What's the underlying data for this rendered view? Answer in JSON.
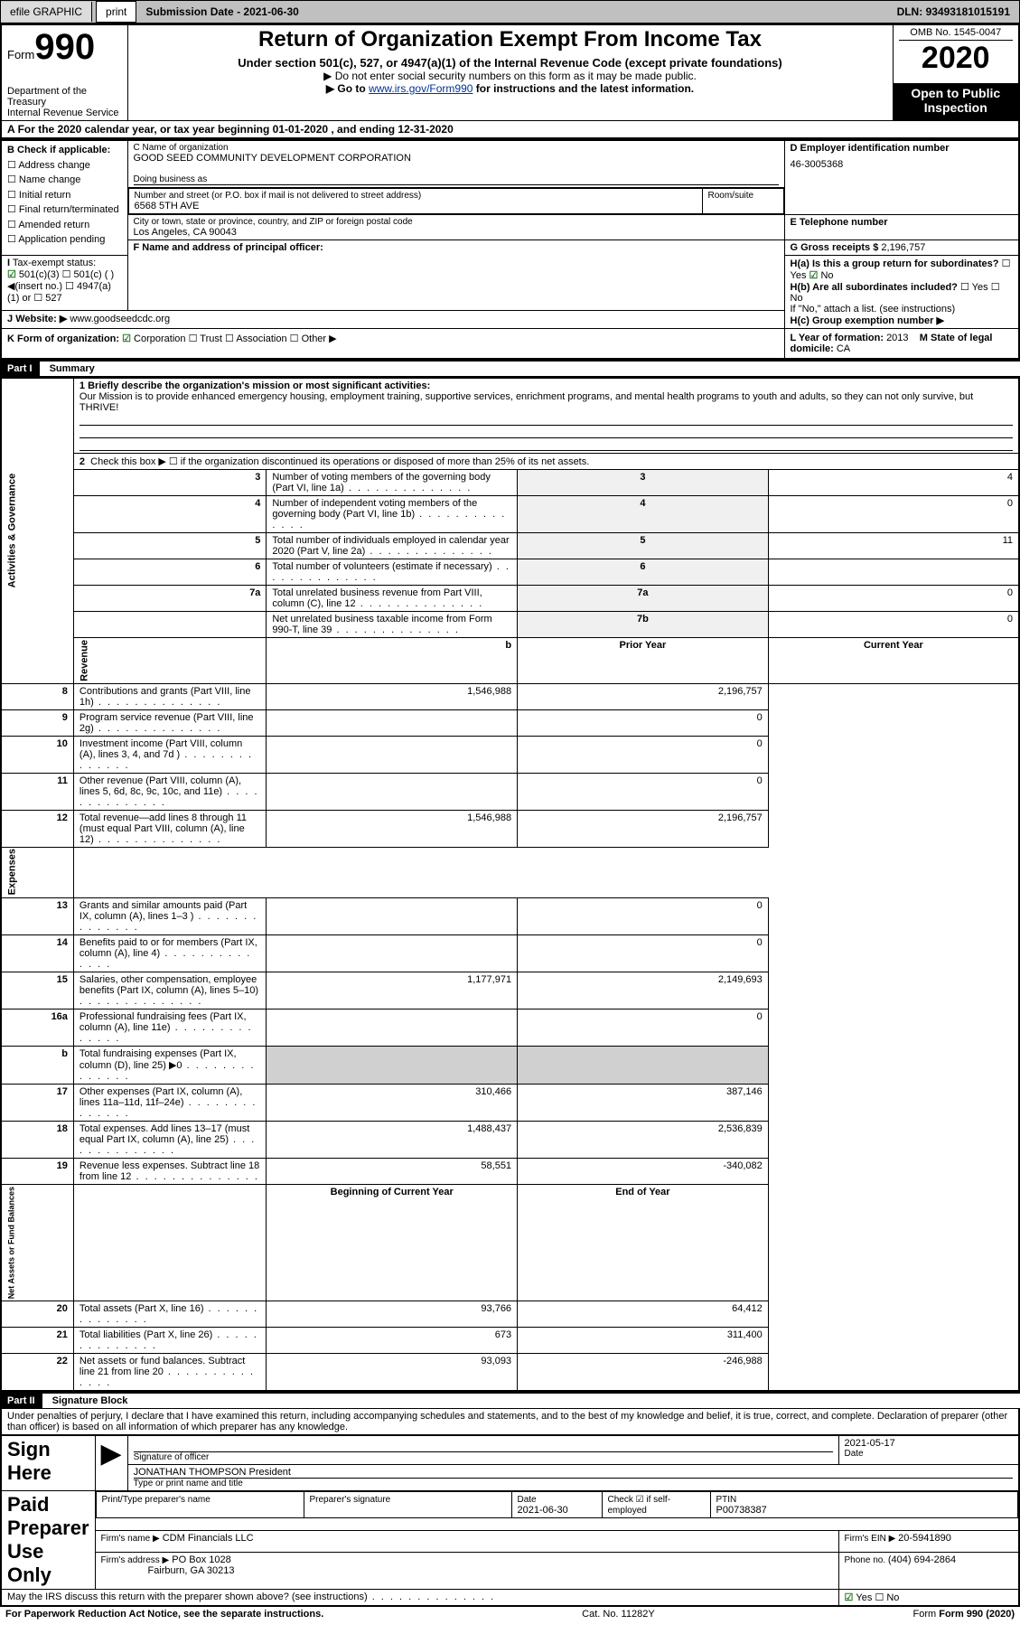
{
  "top_bar": {
    "efile": "efile GRAPHIC",
    "print": "print",
    "submission_label": "Submission Date - ",
    "submission_date": "2021-06-30",
    "dln_label": "DLN: ",
    "dln": "93493181015191"
  },
  "header": {
    "form_word": "Form",
    "form_no": "990",
    "dept": "Department of the Treasury",
    "irs": "Internal Revenue Service",
    "main_title": "Return of Organization Exempt From Income Tax",
    "sub_title": "Under section 501(c), 527, or 4947(a)(1) of the Internal Revenue Code (except private foundations)",
    "instr1": "▶ Do not enter social security numbers on this form as it may be made public.",
    "instr2_pre": "▶ Go to ",
    "instr2_link": "www.irs.gov/Form990",
    "instr2_post": " for instructions and the latest information.",
    "omb": "OMB No. 1545-0047",
    "year": "2020",
    "open": "Open to Public Inspection"
  },
  "period": {
    "line_a": "For the 2020 calendar year, or tax year beginning 01-01-2020    , and ending 12-31-2020"
  },
  "section_b": {
    "label": "B Check if applicable:",
    "items": [
      "Address change",
      "Name change",
      "Initial return",
      "Final return/terminated",
      "Amended return",
      "Application pending"
    ]
  },
  "section_c": {
    "name_lbl": "C Name of organization",
    "name": "GOOD SEED COMMUNITY DEVELOPMENT CORPORATION",
    "dba_lbl": "Doing business as",
    "addr_lbl": "Number and street (or P.O. box if mail is not delivered to street address)",
    "room_lbl": "Room/suite",
    "addr": "6568 5TH AVE",
    "city_lbl": "City or town, state or province, country, and ZIP or foreign postal code",
    "city": "Los Angeles, CA  90043"
  },
  "section_d": {
    "lbl": "D Employer identification number",
    "val": "46-3005368"
  },
  "section_e": {
    "lbl": "E Telephone number"
  },
  "section_f": {
    "lbl": "F  Name and address of principal officer:"
  },
  "section_g": {
    "lbl": "G Gross receipts $ ",
    "val": "2,196,757"
  },
  "section_h": {
    "ha": "H(a)  Is this a group return for subordinates?",
    "hb": "H(b)  Are all subordinates included?",
    "hb_note": "If \"No,\" attach a list. (see instructions)",
    "hc": "H(c)  Group exemption number ▶",
    "yes": "Yes",
    "no": "No"
  },
  "tax_status": {
    "lbl": "Tax-exempt status:",
    "c3": "501(c)(3)",
    "c": "501(c) (  ) ◀(insert no.)",
    "a1": "4947(a)(1) or",
    "s527": "527"
  },
  "section_i": {
    "lbl": "I",
    "tax_label": "Tax-exempt status:"
  },
  "section_j": {
    "lbl": "J",
    "site_lbl": "Website: ▶",
    "site": "www.goodseedcdc.org"
  },
  "section_k": {
    "lbl": "K Form of organization:",
    "corp": "Corporation",
    "trust": "Trust",
    "assoc": "Association",
    "other": "Other ▶"
  },
  "section_l": {
    "lbl": "L Year of formation: ",
    "val": "2013"
  },
  "section_m": {
    "lbl": "M State of legal domicile: ",
    "val": "CA"
  },
  "parts": {
    "p1_hdr": "Part I",
    "p1_title": "Summary",
    "p2_hdr": "Part II",
    "p2_title": "Signature Block"
  },
  "vert_labels": {
    "ag": "Activities & Governance",
    "rev": "Revenue",
    "exp": "Expenses",
    "na": "Net Assets or Fund Balances"
  },
  "summary": {
    "l1_lbl": "1  Briefly describe the organization's mission or most significant activities:",
    "l1_text": "Our Mission is to provide enhanced emergency housing, employment training, supportive services, enrichment programs, and mental health programs to youth and adults, so they can not only survive, but THRIVE!",
    "l2_lbl": "Check this box ▶ ☐   if the organization discontinued its operations or disposed of more than 25% of its net assets.",
    "rows_ag": [
      {
        "n": "3",
        "t": "Number of voting members of the governing body (Part VI, line 1a)",
        "b": "3",
        "v": "4"
      },
      {
        "n": "4",
        "t": "Number of independent voting members of the governing body (Part VI, line 1b)",
        "b": "4",
        "v": "0"
      },
      {
        "n": "5",
        "t": "Total number of individuals employed in calendar year 2020 (Part V, line 2a)",
        "b": "5",
        "v": "11"
      },
      {
        "n": "6",
        "t": "Total number of volunteers (estimate if necessary)",
        "b": "6",
        "v": ""
      },
      {
        "n": "7a",
        "t": "Total unrelated business revenue from Part VIII, column (C), line 12",
        "b": "7a",
        "v": "0"
      },
      {
        "n": "",
        "t": "Net unrelated business taxable income from Form 990-T, line 39",
        "b": "7b",
        "v": "0"
      }
    ],
    "col_hdr_prior": "Prior Year",
    "col_hdr_curr": "Current Year",
    "rows_rev": [
      {
        "n": "8",
        "t": "Contributions and grants (Part VIII, line 1h)",
        "p": "1,546,988",
        "c": "2,196,757"
      },
      {
        "n": "9",
        "t": "Program service revenue (Part VIII, line 2g)",
        "p": "",
        "c": "0"
      },
      {
        "n": "10",
        "t": "Investment income (Part VIII, column (A), lines 3, 4, and 7d )",
        "p": "",
        "c": "0"
      },
      {
        "n": "11",
        "t": "Other revenue (Part VIII, column (A), lines 5, 6d, 8c, 9c, 10c, and 11e)",
        "p": "",
        "c": "0"
      },
      {
        "n": "12",
        "t": "Total revenue—add lines 8 through 11 (must equal Part VIII, column (A), line 12)",
        "p": "1,546,988",
        "c": "2,196,757"
      }
    ],
    "rows_exp": [
      {
        "n": "13",
        "t": "Grants and similar amounts paid (Part IX, column (A), lines 1–3 )",
        "p": "",
        "c": "0"
      },
      {
        "n": "14",
        "t": "Benefits paid to or for members (Part IX, column (A), line 4)",
        "p": "",
        "c": "0"
      },
      {
        "n": "15",
        "t": "Salaries, other compensation, employee benefits (Part IX, column (A), lines 5–10)",
        "p": "1,177,971",
        "c": "2,149,693"
      },
      {
        "n": "16a",
        "t": "Professional fundraising fees (Part IX, column (A), line 11e)",
        "p": "",
        "c": "0"
      },
      {
        "n": "b",
        "t": "Total fundraising expenses (Part IX, column (D), line 25) ▶0",
        "p": "SHADE",
        "c": "SHADE"
      },
      {
        "n": "17",
        "t": "Other expenses (Part IX, column (A), lines 11a–11d, 11f–24e)",
        "p": "310,466",
        "c": "387,146"
      },
      {
        "n": "18",
        "t": "Total expenses. Add lines 13–17 (must equal Part IX, column (A), line 25)",
        "p": "1,488,437",
        "c": "2,536,839"
      },
      {
        "n": "19",
        "t": "Revenue less expenses. Subtract line 18 from line 12",
        "p": "58,551",
        "c": "-340,082"
      }
    ],
    "col_hdr_boy": "Beginning of Current Year",
    "col_hdr_eoy": "End of Year",
    "rows_na": [
      {
        "n": "20",
        "t": "Total assets (Part X, line 16)",
        "p": "93,766",
        "c": "64,412"
      },
      {
        "n": "21",
        "t": "Total liabilities (Part X, line 26)",
        "p": "673",
        "c": "311,400"
      },
      {
        "n": "22",
        "t": "Net assets or fund balances. Subtract line 21 from line 20",
        "p": "93,093",
        "c": "-246,988"
      }
    ]
  },
  "perjury": "Under penalties of perjury, I declare that I have examined this return, including accompanying schedules and statements, and to the best of my knowledge and belief, it is true, correct, and complete. Declaration of preparer (other than officer) is based on all information of which preparer has any knowledge.",
  "sign_here": {
    "lbl": "Sign Here",
    "sig_lbl": "Signature of officer",
    "date_lbl": "Date",
    "date": "2021-05-17",
    "name": "JONATHAN THOMPSON  President",
    "name_lbl": "Type or print name and title"
  },
  "paid_prep": {
    "lbl": "Paid Preparer Use Only",
    "pt_name_lbl": "Print/Type preparer's name",
    "sig_lbl": "Preparer's signature",
    "date_lbl": "Date",
    "date": "2021-06-30",
    "self_emp": "Check ☑ if self-employed",
    "ptin_lbl": "PTIN",
    "ptin": "P00738387",
    "firm_name_lbl": "Firm's name      ▶",
    "firm_name": "CDM Financials LLC",
    "ein_lbl": "Firm's EIN ▶ ",
    "ein": "20-5941890",
    "firm_addr_lbl": "Firm's address ▶",
    "firm_addr1": "PO Box 1028",
    "firm_addr2": "Fairburn, GA  30213",
    "phone_lbl": "Phone no. ",
    "phone": "(404) 694-2864"
  },
  "discuss": {
    "q": "May the IRS discuss this return with the preparer shown above? (see instructions)",
    "yes": "Yes",
    "no": "No"
  },
  "footer": {
    "left": "For Paperwork Reduction Act Notice, see the separate instructions.",
    "mid": "Cat. No. 11282Y",
    "right": "Form 990 (2020)"
  },
  "colors": {
    "topbar_bg": "#c0c0c0",
    "black": "#000000",
    "link": "#003399",
    "shade": "#d0d0d0",
    "check_green": "#2a7a2a"
  }
}
